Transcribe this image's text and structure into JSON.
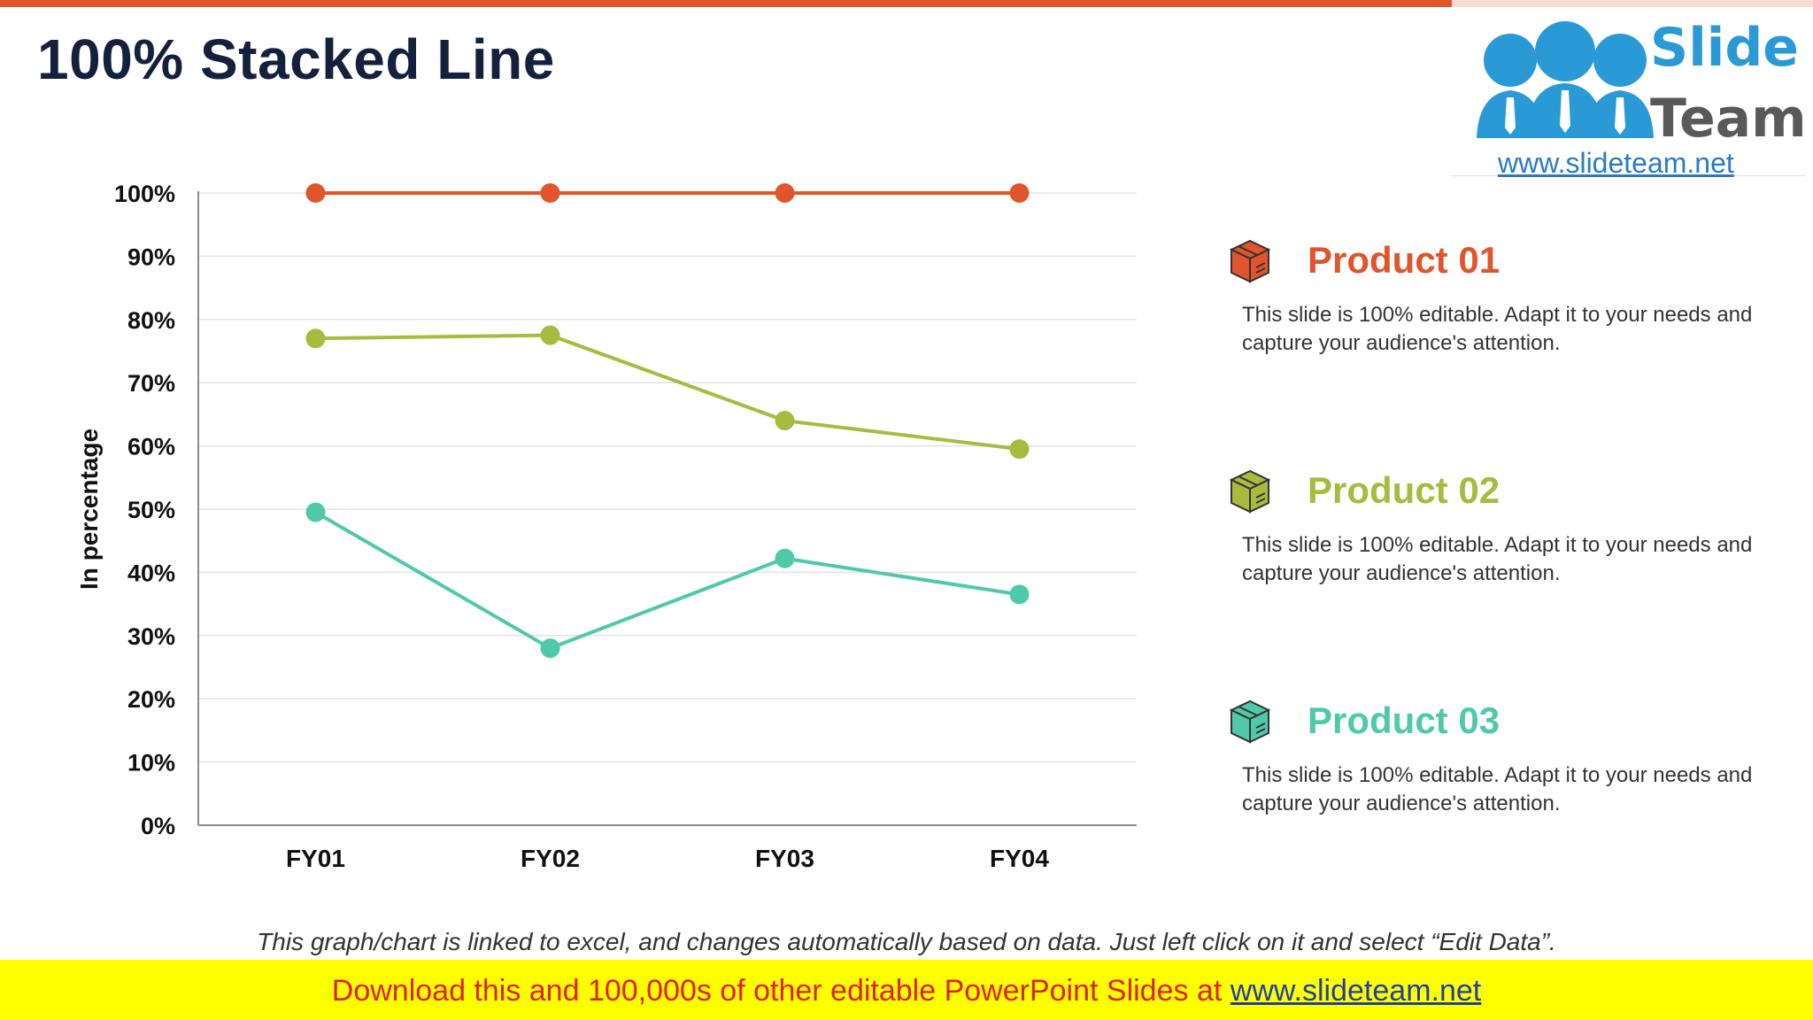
{
  "slide": {
    "title": "100% Stacked Line",
    "footnote": "This graph/chart is linked to excel, and changes automatically based on data. Just left click on it and select “Edit Data”."
  },
  "logo": {
    "word1": "Slide",
    "word2": "Team",
    "url": "www.slideteam.net"
  },
  "banner": {
    "text": "Download this and 100,000s of other editable PowerPoint Slides at ",
    "link": "www.slideteam.net"
  },
  "legend": {
    "items": [
      {
        "name": "Product 01",
        "description": "This slide is 100% editable. Adapt it to your needs and capture your audience's attention.",
        "color": "#e0552b",
        "icon": "box-icon"
      },
      {
        "name": "Product 02",
        "description": "This slide is 100% editable. Adapt it to your needs and capture your audience's attention.",
        "color": "#a8bb3f",
        "icon": "box-icon"
      },
      {
        "name": "Product 03",
        "description": "This slide is 100% editable. Adapt it to your needs and capture your audience's attention.",
        "color": "#4fc9aa",
        "icon": "box-icon"
      }
    ]
  },
  "chart_data": {
    "type": "line",
    "stacking": "100% stacked",
    "title": "",
    "xlabel": "",
    "ylabel": "In percentage",
    "categories": [
      "FY01",
      "FY02",
      "FY03",
      "FY04"
    ],
    "ylim": [
      0,
      100
    ],
    "yticks": [
      "0%",
      "10%",
      "20%",
      "30%",
      "40%",
      "50%",
      "60%",
      "70%",
      "80%",
      "90%",
      "100%"
    ],
    "grid": true,
    "legend": "right",
    "series": [
      {
        "name": "Product 01",
        "values": [
          100,
          100,
          100,
          100
        ],
        "color": "#e0552b"
      },
      {
        "name": "Product 02",
        "values": [
          77,
          77.5,
          64,
          59.5
        ],
        "color": "#a8bb3f"
      },
      {
        "name": "Product 03",
        "values": [
          49.5,
          28,
          42.2,
          36.5
        ],
        "color": "#4fc9aa"
      }
    ]
  }
}
